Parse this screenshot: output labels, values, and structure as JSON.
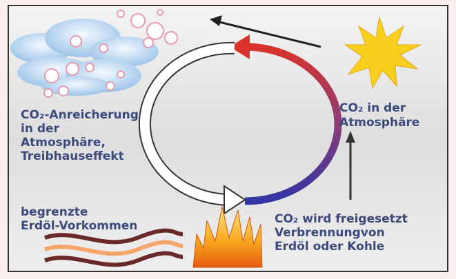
{
  "enrichment": {
    "lines": [
      "CO₂-Anreicherung",
      "in der",
      "Atmosphäre,",
      "Treibhauseffekt"
    ]
  },
  "atmosphere": {
    "lines": [
      "CO₂ in der",
      "Atmosphäre"
    ]
  },
  "release": {
    "lines": [
      "CO₂ wird freigesetzt",
      "Verbrennungvon",
      "Erdöl oder Kohle"
    ]
  },
  "deposits": {
    "lines": [
      "begrenzte",
      "Erdöl-Vorkommen"
    ]
  }
}
